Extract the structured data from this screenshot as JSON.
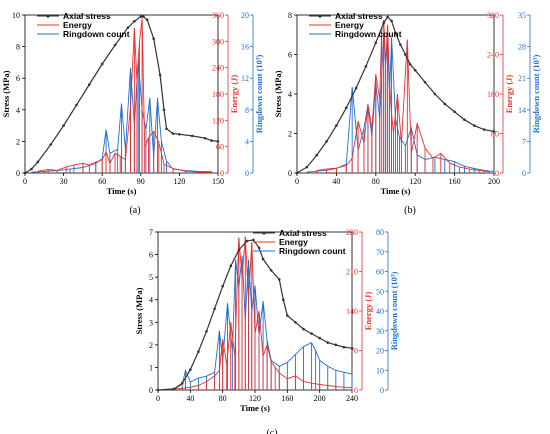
{
  "colors": {
    "stress": "#333333",
    "energy": "#e8302e",
    "ringdown": "#1f6fd1"
  },
  "chart_data": [
    {
      "type": "line",
      "panel_label": "(a)",
      "xlabel": "Time (s)",
      "ylabel_left": "Stress (MPa)",
      "ylabel_energy": "Energy (J)",
      "ylabel_ringdown": "Ringdown count (10³)",
      "x_ticks": [
        "0",
        "30",
        "60",
        "90",
        "120",
        "150"
      ],
      "y_ticks": [
        "0",
        "2",
        "4",
        "6",
        "8",
        "10"
      ],
      "energy_ticks": [
        "0",
        "60",
        "120",
        "180",
        "240",
        "300",
        "360"
      ],
      "ringdown_ticks": [
        "0",
        "4",
        "8",
        "12",
        "16",
        "20"
      ],
      "xlim": [
        0,
        150
      ],
      "ylim": [
        0,
        10
      ],
      "energy_lim": [
        0,
        360
      ],
      "ringdown_lim": [
        0,
        20
      ],
      "legend": [
        "Axial stress",
        "Energy",
        "Ringdown count"
      ],
      "legend_position": "top-left",
      "series": [
        {
          "name": "Axial stress",
          "axis": "stress",
          "x": [
            0,
            5,
            10,
            20,
            30,
            40,
            50,
            60,
            70,
            80,
            85,
            90,
            92,
            95,
            100,
            105,
            108,
            110,
            115,
            120,
            130,
            140,
            145,
            150
          ],
          "y": [
            0,
            0.25,
            0.7,
            1.8,
            3.0,
            4.3,
            5.6,
            6.9,
            8.1,
            9.2,
            9.6,
            9.9,
            9.9,
            9.7,
            8.5,
            6.2,
            4.0,
            2.8,
            2.5,
            2.45,
            2.35,
            2.2,
            2.05,
            2.0
          ]
        },
        {
          "name": "Energy",
          "axis": "energy",
          "x": [
            10,
            18,
            25,
            32,
            38,
            45,
            50,
            55,
            60,
            63,
            66,
            70,
            74,
            78,
            82,
            85,
            87,
            89,
            91,
            93,
            96,
            100,
            104,
            108,
            115,
            125,
            135,
            145
          ],
          "y": [
            4,
            8,
            6,
            14,
            18,
            22,
            18,
            25,
            30,
            48,
            22,
            45,
            38,
            30,
            150,
            330,
            210,
            300,
            352,
            60,
            80,
            95,
            70,
            20,
            10,
            4,
            2,
            1
          ]
        },
        {
          "name": "Ringdown count",
          "axis": "ringdown",
          "x": [
            5,
            15,
            25,
            35,
            45,
            55,
            60,
            63,
            66,
            72,
            75,
            78,
            82,
            85,
            88,
            91,
            94,
            97,
            100,
            103,
            106,
            110,
            115,
            125,
            135,
            145
          ],
          "y": [
            0.1,
            0.2,
            0.3,
            0.5,
            0.7,
            1.2,
            1.8,
            5.5,
            2.5,
            3.0,
            8.8,
            3.0,
            13.3,
            6.0,
            14.4,
            8.0,
            5.5,
            9.5,
            2.0,
            9.5,
            4.0,
            1.5,
            0.5,
            0.3,
            0.2,
            0.2
          ]
        }
      ]
    },
    {
      "type": "line",
      "panel_label": "(b)",
      "xlabel": "Time (s)",
      "ylabel_left": "Stress (MPa)",
      "ylabel_energy": "Energy (J)",
      "ylabel_ringdown": "Ringdown count (10³)",
      "x_ticks": [
        "0",
        "40",
        "80",
        "120",
        "160",
        "200"
      ],
      "y_ticks": [
        "0",
        "2",
        "4",
        "6",
        "8"
      ],
      "energy_ticks": [
        "0",
        "80",
        "160",
        "240",
        "320"
      ],
      "ringdown_ticks": [
        "0",
        "7",
        "14",
        "21",
        "28",
        "35"
      ],
      "xlim": [
        0,
        200
      ],
      "ylim": [
        0,
        8
      ],
      "energy_lim": [
        0,
        320
      ],
      "ringdown_lim": [
        0,
        35
      ],
      "legend": [
        "Axial stress",
        "Energy",
        "Ringdown count"
      ],
      "legend_position": "top-left",
      "series": [
        {
          "name": "Axial stress",
          "axis": "stress",
          "x": [
            0,
            10,
            20,
            30,
            40,
            50,
            60,
            70,
            80,
            88,
            92,
            96,
            100,
            105,
            110,
            115,
            120,
            130,
            140,
            150,
            160,
            170,
            180,
            190,
            200
          ],
          "y": [
            0,
            0.3,
            0.9,
            1.6,
            2.4,
            3.3,
            4.3,
            5.4,
            6.6,
            7.6,
            7.9,
            7.7,
            7.1,
            6.5,
            6.0,
            5.5,
            5.2,
            4.6,
            4.0,
            3.5,
            3.1,
            2.7,
            2.4,
            2.2,
            2.1
          ]
        },
        {
          "name": "Energy",
          "axis": "energy",
          "x": [
            20,
            30,
            40,
            50,
            56,
            62,
            68,
            72,
            76,
            80,
            84,
            86,
            88,
            90,
            92,
            94,
            96,
            98,
            102,
            106,
            112,
            116,
            122,
            130,
            138,
            146,
            155,
            165,
            175,
            185,
            195
          ],
          "y": [
            5,
            8,
            10,
            15,
            30,
            105,
            60,
            140,
            90,
            200,
            150,
            290,
            310,
            220,
            300,
            180,
            120,
            80,
            160,
            60,
            270,
            40,
            100,
            50,
            30,
            40,
            20,
            12,
            8,
            5,
            3
          ]
        },
        {
          "name": "Ringdown count",
          "axis": "ringdown",
          "x": [
            10,
            20,
            30,
            40,
            50,
            56,
            62,
            68,
            72,
            76,
            80,
            84,
            88,
            90,
            92,
            94,
            96,
            100,
            104,
            110,
            116,
            122,
            130,
            140,
            150,
            160,
            170,
            180,
            190,
            200
          ],
          "y": [
            0.2,
            0.4,
            0.6,
            1.0,
            2.0,
            19.0,
            5.0,
            10.0,
            15.0,
            8.0,
            20.0,
            12.0,
            31.0,
            24.0,
            29.0,
            18.0,
            30.0,
            12.0,
            8.0,
            6.0,
            10.0,
            4.0,
            3.0,
            3.5,
            3.0,
            2.5,
            1.5,
            1.0,
            0.6,
            0.3
          ]
        }
      ]
    },
    {
      "type": "line",
      "panel_label": "(c)",
      "xlabel": "Time (s)",
      "ylabel_left": "Stress (MPa)",
      "ylabel_energy": "Energy (J)",
      "ylabel_ringdown": "Ringdown count (10³)",
      "x_ticks": [
        "0",
        "40",
        "80",
        "120",
        "160",
        "200",
        "240"
      ],
      "y_ticks": [
        "0",
        "1",
        "2",
        "3",
        "4",
        "5",
        "6",
        "7"
      ],
      "energy_ticks": [
        "0",
        "70",
        "140",
        "210",
        "280"
      ],
      "ringdown_ticks": [
        "0",
        "10",
        "20",
        "30",
        "40",
        "50",
        "60",
        "70",
        "80"
      ],
      "xlim": [
        0,
        240
      ],
      "ylim": [
        0,
        7
      ],
      "energy_lim": [
        0,
        280
      ],
      "ringdown_lim": [
        0,
        80
      ],
      "legend": [
        "Axial stress",
        "Energy",
        "Ringdown count"
      ],
      "legend_position": "top-center",
      "series": [
        {
          "name": "Axial stress",
          "axis": "stress",
          "x": [
            0,
            20,
            30,
            40,
            50,
            60,
            70,
            80,
            90,
            100,
            110,
            118,
            125,
            130,
            140,
            150,
            155,
            160,
            170,
            180,
            190,
            200,
            210,
            220,
            230,
            240
          ],
          "y": [
            0,
            0.05,
            0.3,
            0.9,
            1.7,
            2.6,
            3.6,
            4.6,
            5.5,
            6.2,
            6.6,
            6.65,
            6.3,
            5.8,
            5.3,
            4.9,
            4.0,
            3.3,
            3.0,
            2.7,
            2.5,
            2.3,
            2.1,
            2.0,
            1.9,
            1.85
          ]
        },
        {
          "name": "Energy",
          "axis": "energy",
          "x": [
            20,
            30,
            40,
            50,
            60,
            70,
            76,
            80,
            85,
            90,
            95,
            100,
            104,
            108,
            112,
            116,
            120,
            125,
            130,
            135,
            140,
            145,
            150,
            160,
            170,
            180,
            190,
            200,
            210,
            220,
            230,
            240
          ],
          "y": [
            2,
            3,
            5,
            8,
            15,
            25,
            35,
            90,
            45,
            120,
            60,
            270,
            200,
            272,
            160,
            262,
            100,
            140,
            60,
            80,
            50,
            40,
            30,
            20,
            25,
            15,
            12,
            10,
            8,
            6,
            5,
            4
          ]
        },
        {
          "name": "Ringdown count",
          "axis": "ringdown",
          "x": [
            10,
            20,
            30,
            34,
            40,
            50,
            60,
            70,
            76,
            80,
            86,
            92,
            96,
            100,
            104,
            108,
            112,
            116,
            120,
            125,
            130,
            135,
            140,
            150,
            160,
            170,
            180,
            190,
            195,
            200,
            210,
            220,
            230,
            240
          ],
          "y": [
            0.2,
            0.5,
            3.0,
            10.0,
            4.0,
            6.0,
            7.0,
            9.0,
            30.0,
            15.0,
            44.0,
            20.0,
            66.0,
            52.0,
            68.0,
            35.0,
            66.0,
            40.0,
            53.0,
            28.0,
            45.0,
            25.0,
            15.0,
            12.0,
            14.0,
            18.0,
            22.0,
            24.0,
            20.0,
            15.0,
            12.0,
            10.0,
            9.0,
            8.0
          ]
        }
      ]
    }
  ]
}
